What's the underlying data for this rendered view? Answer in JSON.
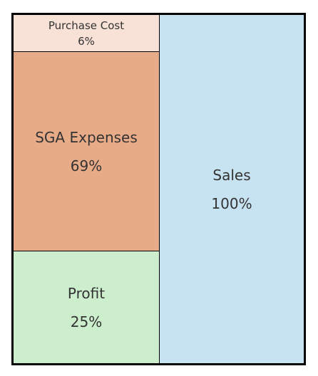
{
  "chart_data": {
    "type": "mekko",
    "title": "",
    "columns": [
      {
        "segments": [
          {
            "label": "Purchase Cost",
            "value_text": "6%",
            "value": 6,
            "color": "#F8E1D6"
          },
          {
            "label": "SGA Expenses",
            "value_text": "69%",
            "value": 69,
            "color": "#E8AB87"
          },
          {
            "label": "Profit",
            "value_text": "25%",
            "value": 25,
            "color": "#CCEECD"
          }
        ]
      },
      {
        "segments": [
          {
            "label": "Sales",
            "value_text": "100%",
            "value": 100,
            "color": "#C7E2F1"
          }
        ]
      }
    ],
    "border_color": "#000000",
    "text_color": "#333333"
  }
}
